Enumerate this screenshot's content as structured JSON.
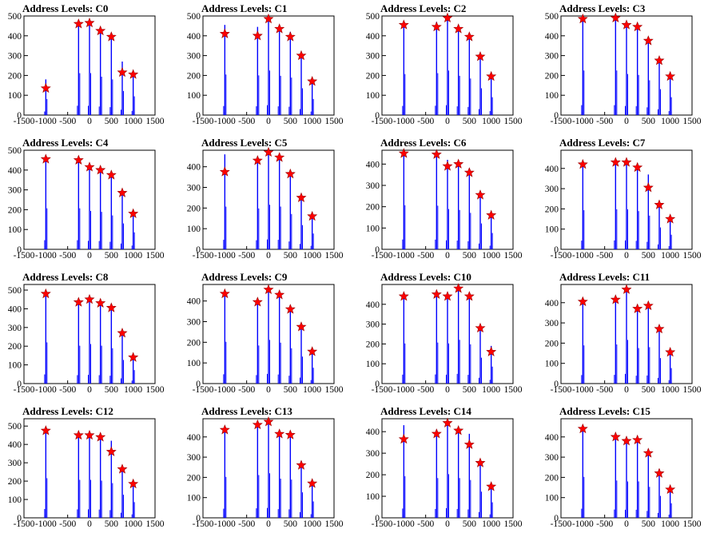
{
  "chart_data": [
    {
      "type": "bar",
      "title": "Address Levels: C0",
      "xlim": [
        -1500,
        1500
      ],
      "ylim": [
        0,
        500
      ],
      "x_ticks": [
        "-1500",
        "-1000",
        "-500",
        "0",
        "500",
        "1000",
        "1500"
      ],
      "y_ticks": [
        "0",
        "100",
        "200",
        "300",
        "400",
        "500"
      ],
      "series": [
        {
          "x": [
            -1000,
            -250,
            0,
            250,
            500,
            750,
            1000
          ],
          "values": [
            180,
            470,
            470,
            430,
            400,
            270,
            210
          ]
        },
        {
          "x": [
            -1000,
            -250,
            0,
            250,
            500,
            750,
            1000
          ],
          "values": [
            135,
            460,
            465,
            425,
            395,
            215,
            205
          ],
          "style": "star"
        }
      ]
    },
    {
      "type": "bar",
      "title": "Address Levels: C1",
      "xlim": [
        -1500,
        1500
      ],
      "ylim": [
        0,
        500
      ],
      "x_ticks": [
        "-1500",
        "-1000",
        "-500",
        "0",
        "500",
        "1000",
        "1500"
      ],
      "y_ticks": [
        "0",
        "100",
        "200",
        "300",
        "400",
        "500"
      ],
      "series": [
        {
          "x": [
            -1000,
            -250,
            0,
            250,
            500,
            750,
            1000
          ],
          "values": [
            455,
            445,
            500,
            440,
            420,
            300,
            180
          ]
        },
        {
          "x": [
            -1000,
            -250,
            0,
            250,
            500,
            750,
            1000
          ],
          "values": [
            410,
            400,
            485,
            435,
            395,
            300,
            170
          ],
          "style": "star"
        }
      ]
    },
    {
      "type": "bar",
      "title": "Address Levels: C2",
      "xlim": [
        -1500,
        1500
      ],
      "ylim": [
        0,
        500
      ],
      "x_ticks": [
        "-1500",
        "-1000",
        "-500",
        "0",
        "500",
        "1000",
        "1500"
      ],
      "y_ticks": [
        "0",
        "100",
        "200",
        "300",
        "400",
        "500"
      ],
      "series": [
        {
          "x": [
            -1000,
            -250,
            0,
            250,
            500,
            750,
            1000
          ],
          "values": [
            460,
            470,
            500,
            440,
            410,
            300,
            200
          ]
        },
        {
          "x": [
            -1000,
            -250,
            0,
            250,
            500,
            750,
            1000
          ],
          "values": [
            455,
            445,
            490,
            435,
            395,
            295,
            195
          ],
          "style": "star"
        }
      ]
    },
    {
      "type": "bar",
      "title": "Address Levels: C3",
      "xlim": [
        -1500,
        1500
      ],
      "ylim": [
        0,
        500
      ],
      "x_ticks": [
        "-1500",
        "-1000",
        "-500",
        "0",
        "500",
        "1000",
        "1500"
      ],
      "y_ticks": [
        "0",
        "100",
        "200",
        "300",
        "400",
        "500"
      ],
      "series": [
        {
          "x": [
            -1000,
            -250,
            0,
            250,
            500,
            750,
            1000
          ],
          "values": [
            500,
            500,
            460,
            450,
            390,
            290,
            200
          ]
        },
        {
          "x": [
            -1000,
            -250,
            0,
            250,
            500,
            750,
            1000
          ],
          "values": [
            485,
            490,
            455,
            445,
            375,
            275,
            195
          ],
          "style": "star"
        }
      ]
    },
    {
      "type": "bar",
      "title": "Address Levels: C4",
      "xlim": [
        -1500,
        1500
      ],
      "ylim": [
        0,
        500
      ],
      "x_ticks": [
        "-1500",
        "-1000",
        "-500",
        "0",
        "500",
        "1000",
        "1500"
      ],
      "y_ticks": [
        "0",
        "100",
        "200",
        "300",
        "400",
        "500"
      ],
      "series": [
        {
          "x": [
            -1000,
            -250,
            0,
            250,
            500,
            750,
            1000
          ],
          "values": [
            460,
            460,
            430,
            420,
            380,
            290,
            190
          ]
        },
        {
          "x": [
            -1000,
            -250,
            0,
            250,
            500,
            750,
            1000
          ],
          "values": [
            455,
            450,
            415,
            400,
            375,
            285,
            180
          ],
          "style": "star"
        }
      ]
    },
    {
      "type": "bar",
      "title": "Address Levels: C5",
      "xlim": [
        -1500,
        1500
      ],
      "ylim": [
        0,
        480
      ],
      "x_ticks": [
        "-1500",
        "-1000",
        "-500",
        "0",
        "500",
        "1000",
        "1500"
      ],
      "y_ticks": [
        "0",
        "100",
        "200",
        "300",
        "400"
      ],
      "series": [
        {
          "x": [
            -1000,
            -250,
            0,
            250,
            500,
            750,
            1000
          ],
          "values": [
            460,
            440,
            480,
            460,
            380,
            260,
            170
          ]
        },
        {
          "x": [
            -1000,
            -250,
            0,
            250,
            500,
            750,
            1000
          ],
          "values": [
            375,
            430,
            470,
            445,
            365,
            250,
            160
          ],
          "style": "star"
        }
      ]
    },
    {
      "type": "bar",
      "title": "Address Levels: C6",
      "xlim": [
        -1500,
        1500
      ],
      "ylim": [
        0,
        465
      ],
      "x_ticks": [
        "-1500",
        "-1000",
        "-500",
        "0",
        "500",
        "1000",
        "1500"
      ],
      "y_ticks": [
        "0",
        "100",
        "200",
        "300",
        "400"
      ],
      "series": [
        {
          "x": [
            -1000,
            -250,
            0,
            250,
            500,
            750,
            1000
          ],
          "values": [
            460,
            455,
            420,
            410,
            380,
            270,
            170
          ]
        },
        {
          "x": [
            -1000,
            -250,
            0,
            250,
            500,
            750,
            1000
          ],
          "values": [
            450,
            445,
            390,
            400,
            360,
            255,
            160
          ],
          "style": "star"
        }
      ]
    },
    {
      "type": "bar",
      "title": "Address Levels: C7",
      "xlim": [
        -1500,
        1500
      ],
      "ylim": [
        0,
        490
      ],
      "x_ticks": [
        "-1500",
        "-1000",
        "-500",
        "0",
        "500",
        "1000",
        "1500"
      ],
      "y_ticks": [
        "0",
        "100",
        "200",
        "300",
        "400"
      ],
      "series": [
        {
          "x": [
            -1000,
            -250,
            0,
            250,
            500,
            750,
            1000
          ],
          "values": [
            430,
            440,
            440,
            420,
            370,
            240,
            160
          ]
        },
        {
          "x": [
            -1000,
            -250,
            0,
            250,
            500,
            750,
            1000
          ],
          "values": [
            420,
            430,
            430,
            405,
            305,
            220,
            150
          ],
          "style": "star"
        }
      ]
    },
    {
      "type": "bar",
      "title": "Address Levels: C8",
      "xlim": [
        -1500,
        1500
      ],
      "ylim": [
        0,
        530
      ],
      "x_ticks": [
        "-1500",
        "-1000",
        "-500",
        "0",
        "500",
        "1000",
        "1500"
      ],
      "y_ticks": [
        "0",
        "100",
        "200",
        "300",
        "400",
        "500"
      ],
      "series": [
        {
          "x": [
            -1000,
            -250,
            0,
            250,
            500,
            750,
            1000
          ],
          "values": [
            490,
            450,
            470,
            450,
            420,
            280,
            160
          ]
        },
        {
          "x": [
            -1000,
            -250,
            0,
            250,
            500,
            750,
            1000
          ],
          "values": [
            480,
            435,
            450,
            430,
            405,
            270,
            140
          ],
          "style": "star"
        }
      ]
    },
    {
      "type": "bar",
      "title": "Address Levels: C9",
      "xlim": [
        -1500,
        1500
      ],
      "ylim": [
        0,
        480
      ],
      "x_ticks": [
        "-1500",
        "-1000",
        "-500",
        "0",
        "500",
        "1000",
        "1500"
      ],
      "y_ticks": [
        "0",
        "100",
        "200",
        "300",
        "400"
      ],
      "series": [
        {
          "x": [
            -1000,
            -250,
            0,
            250,
            500,
            750,
            1000
          ],
          "values": [
            450,
            410,
            470,
            440,
            380,
            290,
            170
          ]
        },
        {
          "x": [
            -1000,
            -250,
            0,
            250,
            500,
            750,
            1000
          ],
          "values": [
            435,
            395,
            455,
            430,
            360,
            275,
            155
          ],
          "style": "star"
        }
      ]
    },
    {
      "type": "bar",
      "title": "Address Levels: C10",
      "xlim": [
        -1500,
        1500
      ],
      "ylim": [
        0,
        500
      ],
      "x_ticks": [
        "-1500",
        "-1000",
        "-500",
        "0",
        "500",
        "1000",
        "1500"
      ],
      "y_ticks": [
        "0",
        "100",
        "200",
        "300",
        "400"
      ],
      "series": [
        {
          "x": [
            -1000,
            -250,
            0,
            250,
            500,
            750,
            1000
          ],
          "values": [
            450,
            460,
            450,
            490,
            440,
            290,
            190
          ]
        },
        {
          "x": [
            -1000,
            -250,
            0,
            250,
            500,
            750,
            1000
          ],
          "values": [
            440,
            450,
            440,
            480,
            440,
            280,
            160
          ],
          "style": "star"
        }
      ]
    },
    {
      "type": "bar",
      "title": "Address Levels: C11",
      "xlim": [
        -1500,
        1500
      ],
      "ylim": [
        0,
        490
      ],
      "x_ticks": [
        "-1500",
        "-1000",
        "-500",
        "0",
        "500",
        "1000",
        "1500"
      ],
      "y_ticks": [
        "0",
        "100",
        "200",
        "300",
        "400"
      ],
      "series": [
        {
          "x": [
            -1000,
            -250,
            0,
            250,
            500,
            750,
            1000
          ],
          "values": [
            420,
            430,
            480,
            390,
            400,
            280,
            170
          ]
        },
        {
          "x": [
            -1000,
            -250,
            0,
            250,
            500,
            750,
            1000
          ],
          "values": [
            405,
            415,
            465,
            370,
            385,
            270,
            155
          ],
          "style": "star"
        }
      ]
    },
    {
      "type": "bar",
      "title": "Address Levels: C12",
      "xlim": [
        -1500,
        1500
      ],
      "ylim": [
        0,
        540
      ],
      "x_ticks": [
        "-1500",
        "-1000",
        "-500",
        "0",
        "500",
        "1000",
        "1500"
      ],
      "y_ticks": [
        "0",
        "100",
        "200",
        "300",
        "400",
        "500"
      ],
      "series": [
        {
          "x": [
            -1000,
            -250,
            0,
            250,
            500,
            750,
            1000
          ],
          "values": [
            480,
            460,
            460,
            450,
            420,
            280,
            190
          ]
        },
        {
          "x": [
            -1000,
            -250,
            0,
            250,
            500,
            750,
            1000
          ],
          "values": [
            475,
            450,
            450,
            440,
            360,
            265,
            185
          ],
          "style": "star"
        }
      ]
    },
    {
      "type": "bar",
      "title": "Address Levels: C13",
      "xlim": [
        -1500,
        1500
      ],
      "ylim": [
        0,
        490
      ],
      "x_ticks": [
        "-1500",
        "-1000",
        "-500",
        "0",
        "500",
        "1000",
        "1500"
      ],
      "y_ticks": [
        "0",
        "100",
        "200",
        "300",
        "400"
      ],
      "series": [
        {
          "x": [
            -1000,
            -250,
            0,
            250,
            500,
            750,
            1000
          ],
          "values": [
            450,
            470,
            490,
            430,
            420,
            280,
            180
          ]
        },
        {
          "x": [
            -1000,
            -250,
            0,
            250,
            500,
            750,
            1000
          ],
          "values": [
            435,
            460,
            475,
            415,
            410,
            260,
            170
          ],
          "style": "star"
        }
      ]
    },
    {
      "type": "bar",
      "title": "Address Levels: C14",
      "xlim": [
        -1500,
        1500
      ],
      "ylim": [
        0,
        460
      ],
      "x_ticks": [
        "-1500",
        "-1000",
        "-500",
        "0",
        "500",
        "1000",
        "1500"
      ],
      "y_ticks": [
        "0",
        "100",
        "200",
        "300",
        "400"
      ],
      "series": [
        {
          "x": [
            -1000,
            -250,
            0,
            250,
            500,
            750,
            1000
          ],
          "values": [
            430,
            410,
            450,
            410,
            390,
            270,
            160
          ]
        },
        {
          "x": [
            -1000,
            -250,
            0,
            250,
            500,
            750,
            1000
          ],
          "values": [
            365,
            390,
            440,
            405,
            340,
            255,
            145
          ],
          "style": "star"
        }
      ]
    },
    {
      "type": "bar",
      "title": "Address Levels: C15",
      "xlim": [
        -1500,
        1500
      ],
      "ylim": [
        0,
        490
      ],
      "x_ticks": [
        "-1500",
        "-1000",
        "-500",
        "0",
        "500",
        "1000",
        "1500"
      ],
      "y_ticks": [
        "0",
        "100",
        "200",
        "300",
        "400"
      ],
      "series": [
        {
          "x": [
            -1000,
            -250,
            0,
            250,
            500,
            750,
            1000
          ],
          "values": [
            450,
            410,
            400,
            400,
            340,
            240,
            160
          ]
        },
        {
          "x": [
            -1000,
            -250,
            0,
            250,
            500,
            750,
            1000
          ],
          "values": [
            440,
            400,
            380,
            385,
            320,
            220,
            140
          ],
          "style": "star"
        }
      ]
    }
  ],
  "colors": {
    "bars": "#0000ff",
    "markers": "#ff0000",
    "marker_edge": "#990000",
    "axes": "#000000",
    "background": "#ffffff"
  }
}
